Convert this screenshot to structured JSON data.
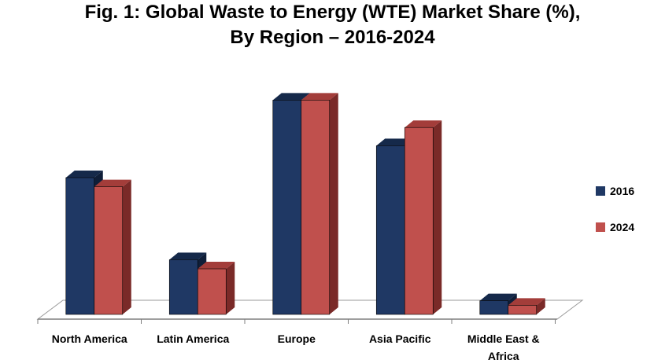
{
  "chart_data": {
    "type": "bar",
    "title_line1": "Fig. 1: Global Waste to Energy (WTE) Market Share (%),",
    "title_line2": "By Region – 2016-2024",
    "categories": [
      "North America",
      "Latin America",
      "Europe",
      "Asia Pacific",
      "Middle East & Africa"
    ],
    "series": [
      {
        "name": "2016",
        "values": [
          30,
          12,
          47,
          37,
          3
        ],
        "color": "#1F3864",
        "top_color": "#15294A",
        "side_color": "#0F1E38"
      },
      {
        "name": "2024",
        "values": [
          28,
          10,
          47,
          41,
          2
        ],
        "color": "#C0504D",
        "top_color": "#A33D3A",
        "side_color": "#7A2A28"
      }
    ],
    "xlabel": "",
    "ylabel": "",
    "ylim": [
      0,
      50
    ],
    "grid": false,
    "legend_position": "right"
  }
}
